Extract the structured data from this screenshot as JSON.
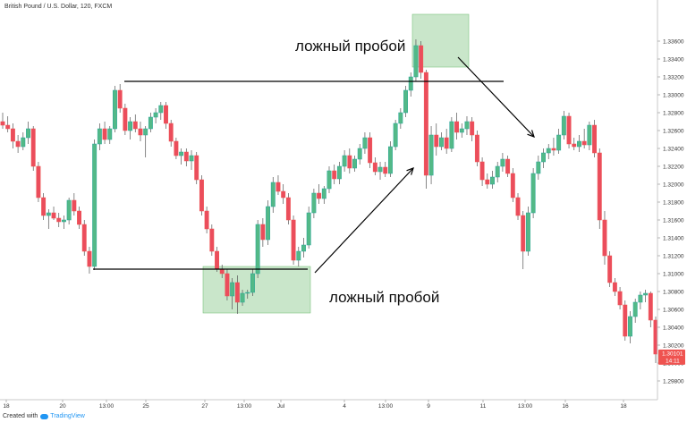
{
  "header": {
    "symbol_title": "British Pound / U.S. Dollar, 120, FXCM"
  },
  "footer": {
    "created_with": "Created with",
    "brand": "TradingView"
  },
  "colors": {
    "up": "#26a69a",
    "up_body": "#53b987",
    "down": "#ef5350",
    "down_body": "#eb4d5c",
    "wick": "#555555",
    "zone_fill": "#a5d6a7",
    "line": "#000000",
    "price_label_bg": "#ef5350",
    "axis_text": "#333333"
  },
  "annotations": [
    {
      "id": "false-breakout-top",
      "text": "ложный пробой"
    },
    {
      "id": "false-breakout-bottom",
      "text": "ложный пробой"
    }
  ],
  "price_label": {
    "value": "1.30101",
    "time_left": "14:11"
  },
  "chart_data": {
    "type": "candlestick",
    "title": "British Pound / U.S. Dollar, 120, FXCM",
    "ylim": [
      1.297,
      1.3383
    ],
    "y_ticks": [
      "1.33600",
      "1.33400",
      "1.33200",
      "1.33000",
      "1.32800",
      "1.32600",
      "1.32400",
      "1.32200",
      "1.32000",
      "1.31800",
      "1.31600",
      "1.31400",
      "1.31200",
      "1.31000",
      "1.30800",
      "1.30600",
      "1.30400",
      "1.30200",
      "1.30000",
      "1.29800"
    ],
    "x_ticks": [
      "18",
      "20",
      "13:00",
      "25",
      "27",
      "13:00",
      "Jul",
      "4",
      "13:00",
      "9",
      "11",
      "13:00",
      "16",
      "18"
    ],
    "resistance_level": 1.3315,
    "support_level": 1.3105,
    "candles": [
      [
        1.327,
        1.328,
        1.3262,
        1.3266
      ],
      [
        1.3266,
        1.3276,
        1.3258,
        1.3262
      ],
      [
        1.3262,
        1.3268,
        1.324,
        1.3248
      ],
      [
        1.3248,
        1.3255,
        1.3235,
        1.3242
      ],
      [
        1.3242,
        1.3258,
        1.3238,
        1.3252
      ],
      [
        1.3252,
        1.327,
        1.3245,
        1.3262
      ],
      [
        1.3262,
        1.3265,
        1.3215,
        1.322
      ],
      [
        1.322,
        1.3225,
        1.318,
        1.3185
      ],
      [
        1.3185,
        1.319,
        1.316,
        1.3165
      ],
      [
        1.3165,
        1.3172,
        1.315,
        1.3168
      ],
      [
        1.3168,
        1.3175,
        1.316,
        1.3162
      ],
      [
        1.3162,
        1.3168,
        1.3152,
        1.3158
      ],
      [
        1.3158,
        1.3165,
        1.315,
        1.316
      ],
      [
        1.316,
        1.3185,
        1.3155,
        1.3182
      ],
      [
        1.3182,
        1.319,
        1.3165,
        1.317
      ],
      [
        1.317,
        1.3175,
        1.315,
        1.3155
      ],
      [
        1.3155,
        1.316,
        1.312,
        1.3125
      ],
      [
        1.3125,
        1.313,
        1.31,
        1.3108
      ],
      [
        1.3108,
        1.325,
        1.3104,
        1.3245
      ],
      [
        1.3245,
        1.3268,
        1.3238,
        1.3262
      ],
      [
        1.3262,
        1.327,
        1.3245,
        1.325
      ],
      [
        1.325,
        1.3265,
        1.3245,
        1.3262
      ],
      [
        1.3262,
        1.331,
        1.3258,
        1.3305
      ],
      [
        1.3305,
        1.3312,
        1.328,
        1.3285
      ],
      [
        1.3285,
        1.329,
        1.3255,
        1.326
      ],
      [
        1.326,
        1.3275,
        1.325,
        1.327
      ],
      [
        1.327,
        1.3278,
        1.3258,
        1.3262
      ],
      [
        1.3262,
        1.327,
        1.3248,
        1.3255
      ],
      [
        1.3255,
        1.3265,
        1.323,
        1.3262
      ],
      [
        1.3262,
        1.328,
        1.3258,
        1.3275
      ],
      [
        1.3275,
        1.3285,
        1.3268,
        1.328
      ],
      [
        1.328,
        1.3292,
        1.3272,
        1.3288
      ],
      [
        1.3288,
        1.3292,
        1.3262,
        1.3268
      ],
      [
        1.3268,
        1.3272,
        1.3242,
        1.3248
      ],
      [
        1.3248,
        1.3252,
        1.3228,
        1.3232
      ],
      [
        1.3232,
        1.324,
        1.3222,
        1.3236
      ],
      [
        1.3236,
        1.324,
        1.322,
        1.3226
      ],
      [
        1.3226,
        1.3238,
        1.3216,
        1.3232
      ],
      [
        1.3232,
        1.3236,
        1.32,
        1.3205
      ],
      [
        1.3205,
        1.321,
        1.3165,
        1.317
      ],
      [
        1.317,
        1.3175,
        1.3145,
        1.315
      ],
      [
        1.315,
        1.3155,
        1.312,
        1.3125
      ],
      [
        1.3125,
        1.313,
        1.3102,
        1.3105
      ],
      [
        1.3105,
        1.311,
        1.3095,
        1.31
      ],
      [
        1.31,
        1.3105,
        1.307,
        1.3075
      ],
      [
        1.3075,
        1.3095,
        1.306,
        1.309
      ],
      [
        1.309,
        1.3098,
        1.3055,
        1.3068
      ],
      [
        1.3068,
        1.3082,
        1.3064,
        1.3078
      ],
      [
        1.3078,
        1.3082,
        1.3072,
        1.3079
      ],
      [
        1.3079,
        1.3105,
        1.3075,
        1.31
      ],
      [
        1.31,
        1.316,
        1.3095,
        1.3155
      ],
      [
        1.3155,
        1.3162,
        1.313,
        1.3138
      ],
      [
        1.3138,
        1.3182,
        1.3132,
        1.3175
      ],
      [
        1.3175,
        1.3208,
        1.3168,
        1.3202
      ],
      [
        1.3202,
        1.321,
        1.3188,
        1.3192
      ],
      [
        1.3192,
        1.32,
        1.3178,
        1.3185
      ],
      [
        1.3185,
        1.319,
        1.3155,
        1.316
      ],
      [
        1.316,
        1.3165,
        1.311,
        1.3115
      ],
      [
        1.3115,
        1.313,
        1.3108,
        1.3125
      ],
      [
        1.3125,
        1.314,
        1.3118,
        1.3132
      ],
      [
        1.3132,
        1.3175,
        1.3128,
        1.3168
      ],
      [
        1.3168,
        1.3195,
        1.3162,
        1.319
      ],
      [
        1.319,
        1.32,
        1.3178,
        1.3184
      ],
      [
        1.3184,
        1.3198,
        1.3178,
        1.3195
      ],
      [
        1.3195,
        1.322,
        1.319,
        1.3215
      ],
      [
        1.3215,
        1.3222,
        1.32,
        1.3206
      ],
      [
        1.3206,
        1.3225,
        1.32,
        1.322
      ],
      [
        1.322,
        1.3238,
        1.3214,
        1.3232
      ],
      [
        1.3232,
        1.324,
        1.3212,
        1.3218
      ],
      [
        1.3218,
        1.3232,
        1.3214,
        1.3228
      ],
      [
        1.3228,
        1.3245,
        1.3222,
        1.324
      ],
      [
        1.324,
        1.3258,
        1.3234,
        1.3252
      ],
      [
        1.3252,
        1.3258,
        1.3218,
        1.3224
      ],
      [
        1.3224,
        1.323,
        1.321,
        1.3214
      ],
      [
        1.3214,
        1.3225,
        1.3205,
        1.3219
      ],
      [
        1.3219,
        1.3225,
        1.3208,
        1.3212
      ],
      [
        1.3212,
        1.3248,
        1.3208,
        1.3242
      ],
      [
        1.3242,
        1.3272,
        1.3238,
        1.3268
      ],
      [
        1.3268,
        1.3285,
        1.3262,
        1.328
      ],
      [
        1.328,
        1.331,
        1.3275,
        1.3305
      ],
      [
        1.3305,
        1.3325,
        1.3298,
        1.332
      ],
      [
        1.332,
        1.3362,
        1.3315,
        1.3355
      ],
      [
        1.3355,
        1.336,
        1.3318,
        1.3325
      ],
      [
        1.3325,
        1.3328,
        1.3195,
        1.321
      ],
      [
        1.321,
        1.3265,
        1.32,
        1.3255
      ],
      [
        1.3255,
        1.3268,
        1.3232,
        1.3242
      ],
      [
        1.3242,
        1.3258,
        1.3238,
        1.3252
      ],
      [
        1.3252,
        1.3262,
        1.3234,
        1.324
      ],
      [
        1.324,
        1.3275,
        1.3236,
        1.327
      ],
      [
        1.327,
        1.328,
        1.325,
        1.3258
      ],
      [
        1.3258,
        1.3268,
        1.3252,
        1.3262
      ],
      [
        1.3262,
        1.3276,
        1.3255,
        1.327
      ],
      [
        1.327,
        1.3275,
        1.3248,
        1.3255
      ],
      [
        1.3255,
        1.326,
        1.322,
        1.3225
      ],
      [
        1.3225,
        1.323,
        1.3198,
        1.3205
      ],
      [
        1.3205,
        1.3212,
        1.3195,
        1.32
      ],
      [
        1.32,
        1.3215,
        1.3195,
        1.3208
      ],
      [
        1.3208,
        1.3225,
        1.3202,
        1.322
      ],
      [
        1.322,
        1.3235,
        1.3214,
        1.3228
      ],
      [
        1.3228,
        1.3232,
        1.3208,
        1.3212
      ],
      [
        1.3212,
        1.3218,
        1.318,
        1.3185
      ],
      [
        1.3185,
        1.319,
        1.316,
        1.3165
      ],
      [
        1.3165,
        1.317,
        1.3105,
        1.3125
      ],
      [
        1.3125,
        1.3175,
        1.312,
        1.3168
      ],
      [
        1.3168,
        1.3218,
        1.3162,
        1.3212
      ],
      [
        1.3212,
        1.3232,
        1.3205,
        1.3225
      ],
      [
        1.3225,
        1.324,
        1.3218,
        1.3235
      ],
      [
        1.3235,
        1.3245,
        1.3228,
        1.324
      ],
      [
        1.324,
        1.3252,
        1.3232,
        1.3238
      ],
      [
        1.3238,
        1.3262,
        1.3234,
        1.3255
      ],
      [
        1.3255,
        1.3282,
        1.325,
        1.3276
      ],
      [
        1.3276,
        1.328,
        1.324,
        1.3245
      ],
      [
        1.3245,
        1.3252,
        1.3238,
        1.3242
      ],
      [
        1.3242,
        1.3255,
        1.3236,
        1.3248
      ],
      [
        1.3248,
        1.3262,
        1.324,
        1.3244
      ],
      [
        1.3244,
        1.327,
        1.3238,
        1.3266
      ],
      [
        1.3266,
        1.3272,
        1.323,
        1.3235
      ],
      [
        1.3235,
        1.324,
        1.315,
        1.316
      ],
      [
        1.316,
        1.317,
        1.311,
        1.312
      ],
      [
        1.312,
        1.3125,
        1.3085,
        1.309
      ],
      [
        1.309,
        1.3095,
        1.3075,
        1.308
      ],
      [
        1.308,
        1.3085,
        1.306,
        1.3065
      ],
      [
        1.3065,
        1.307,
        1.3025,
        1.303
      ],
      [
        1.303,
        1.3058,
        1.3022,
        1.3052
      ],
      [
        1.3052,
        1.3072,
        1.3045,
        1.3068
      ],
      [
        1.3068,
        1.308,
        1.306,
        1.3076
      ],
      [
        1.3076,
        1.3082,
        1.3068,
        1.3078
      ],
      [
        1.3078,
        1.308,
        1.304,
        1.3048
      ],
      [
        1.3048,
        1.3052,
        1.3,
        1.301
      ]
    ]
  }
}
